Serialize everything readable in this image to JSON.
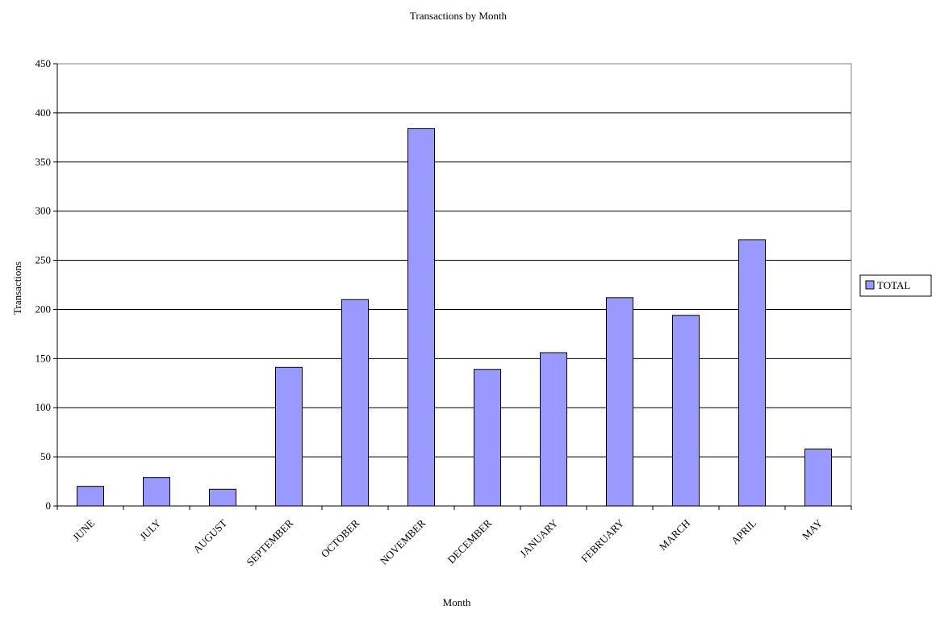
{
  "chart_data": {
    "type": "bar",
    "title": "Transactions by Month",
    "xlabel": "Month",
    "ylabel": "Transactions",
    "categories": [
      "JUNE",
      "JULY",
      "AUGUST",
      "SEPTEMBER",
      "OCTOBER",
      "NOVEMBER",
      "DECEMBER",
      "JANUARY",
      "FEBRUARY",
      "MARCH",
      "APRIL",
      "MAY"
    ],
    "series": [
      {
        "name": "TOTAL",
        "values": [
          20,
          29,
          17,
          141,
          210,
          384,
          139,
          156,
          212,
          194,
          271,
          58
        ]
      }
    ],
    "ylim": [
      0,
      450
    ],
    "yticks": [
      0,
      50,
      100,
      150,
      200,
      250,
      300,
      350,
      400,
      450
    ],
    "grid": true,
    "legend": "right",
    "bar_color": "#9999ff",
    "bar_stroke": "#000000"
  }
}
